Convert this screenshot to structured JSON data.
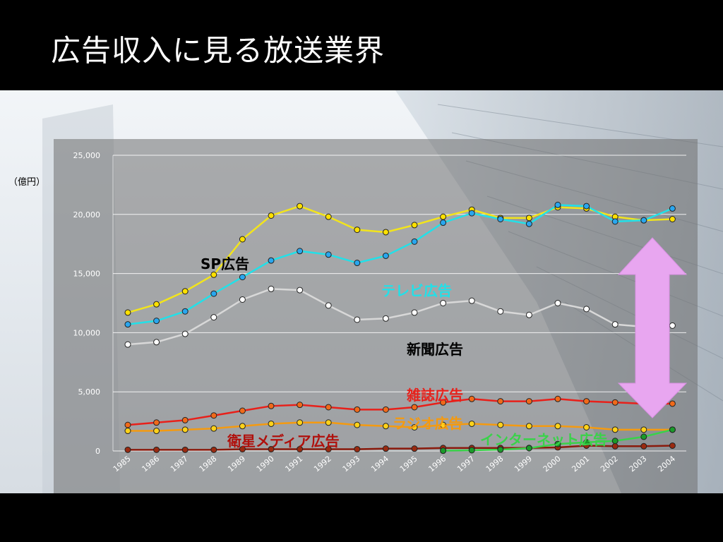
{
  "slide": {
    "title": "広告収入に見る放送業界",
    "unit_label": "（億円）"
  },
  "chart_data": {
    "type": "line",
    "x": [
      1985,
      1986,
      1987,
      1988,
      1989,
      1990,
      1991,
      1992,
      1993,
      1994,
      1995,
      1996,
      1997,
      1998,
      1999,
      2000,
      2001,
      2002,
      2003,
      2004
    ],
    "ylim": [
      0,
      25000
    ],
    "yticks": [
      "0",
      "5,000",
      "10,000",
      "15,000",
      "20,000",
      "25,000"
    ],
    "ytick_values": [
      0,
      5000,
      10000,
      15000,
      20000,
      25000
    ],
    "xticks": [
      "1985",
      "1986",
      "1987",
      "1988",
      "1989",
      "1990",
      "1991",
      "1992",
      "1993",
      "1994",
      "1995",
      "1996",
      "1997",
      "1998",
      "1999",
      "2000",
      "2001",
      "2002",
      "2003",
      "2004"
    ],
    "grid": true,
    "series": [
      {
        "name": "SP広告",
        "color": "#f2e41c",
        "marker": "#ffe000",
        "values": [
          11700,
          12400,
          13500,
          14900,
          17900,
          19900,
          20700,
          19800,
          18700,
          18500,
          19100,
          19800,
          20400,
          19700,
          19700,
          20600,
          20500,
          19800,
          19500,
          19600
        ]
      },
      {
        "name": "テレビ広告",
        "color": "#22e0e8",
        "marker": "#2aa6ee",
        "values": [
          10700,
          11000,
          11800,
          13300,
          14700,
          16100,
          16900,
          16600,
          15900,
          16500,
          17700,
          19300,
          20100,
          19600,
          19200,
          20800,
          20700,
          19400,
          19500,
          20500
        ]
      },
      {
        "name": "新聞広告",
        "color": "#d8d8d8",
        "marker": "#ffffff",
        "values": [
          9000,
          9200,
          9900,
          11300,
          12800,
          13700,
          13600,
          12300,
          11100,
          11200,
          11700,
          12500,
          12700,
          11800,
          11500,
          12500,
          12000,
          10700,
          10500,
          10600
        ]
      },
      {
        "name": "雑誌広告",
        "color": "#e8201a",
        "marker": "#f06a1a",
        "values": [
          2200,
          2400,
          2600,
          3000,
          3400,
          3800,
          3900,
          3700,
          3500,
          3500,
          3700,
          4100,
          4400,
          4200,
          4200,
          4400,
          4200,
          4100,
          4000,
          4000
        ]
      },
      {
        "name": "ラジオ広告",
        "color": "#f49a10",
        "marker": "#ffd21a",
        "values": [
          1700,
          1700,
          1800,
          1900,
          2100,
          2300,
          2400,
          2400,
          2200,
          2100,
          2000,
          2200,
          2300,
          2200,
          2100,
          2100,
          2000,
          1800,
          1800,
          1800
        ]
      },
      {
        "name": "衛星メディア広告",
        "color": "#8a1a0c",
        "marker": "#9a2a10",
        "values": [
          100,
          100,
          100,
          100,
          150,
          150,
          150,
          150,
          150,
          200,
          200,
          250,
          250,
          250,
          250,
          300,
          450,
          400,
          400,
          450
        ]
      },
      {
        "name": "インターネット広告",
        "color": "#3ad24a",
        "marker": "#1a9a2a",
        "values": [
          null,
          null,
          null,
          null,
          null,
          null,
          null,
          null,
          null,
          null,
          null,
          20,
          60,
          110,
          240,
          590,
          730,
          850,
          1200,
          1800
        ]
      }
    ],
    "labels": [
      {
        "text": "SP広告",
        "color": "#000000"
      },
      {
        "text": "テレビ広告",
        "color": "#22e0e8"
      },
      {
        "text": "新聞広告",
        "color": "#000000"
      },
      {
        "text": "雑誌広告",
        "color": "#e8201a"
      },
      {
        "text": "ラジオ広告",
        "color": "#f49a10"
      },
      {
        "text": "衛星メディア広告",
        "color": "#b0100c"
      },
      {
        "text": "インターネット広告",
        "color": "#3ad24a"
      }
    ],
    "arrow_color": "#e8a6f0"
  }
}
